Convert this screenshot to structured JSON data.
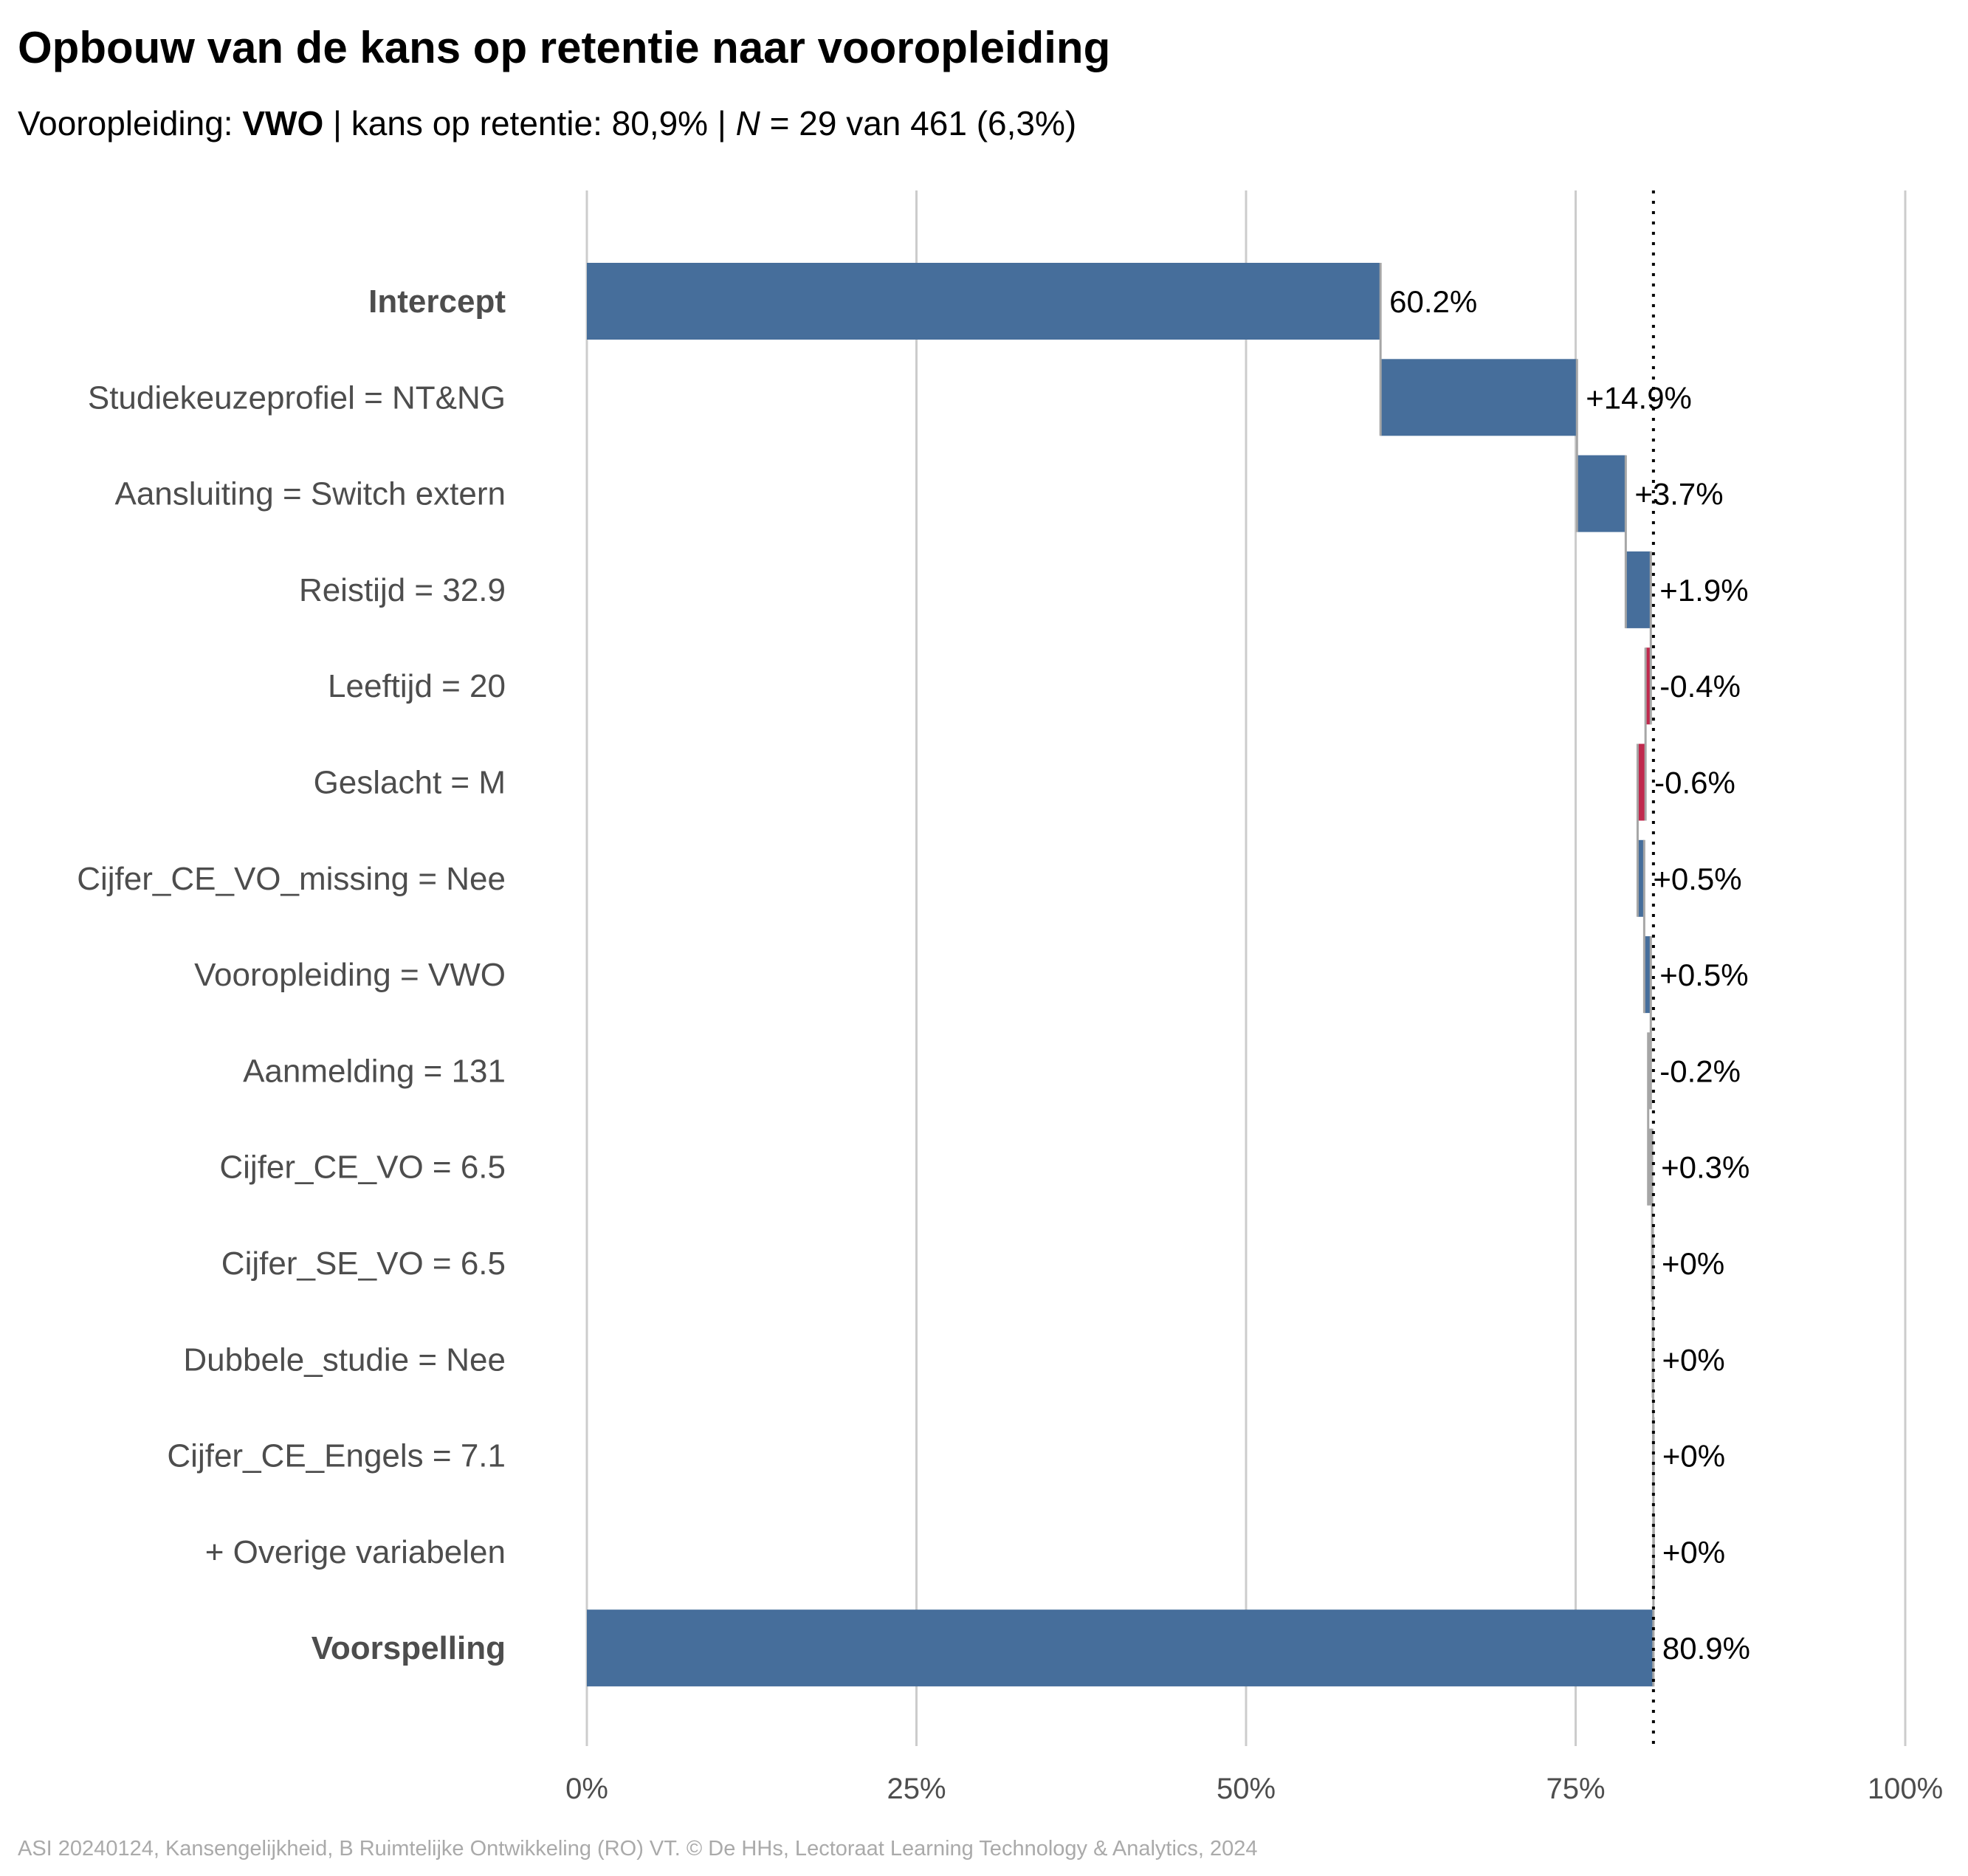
{
  "title": "Opbouw van de kans op retentie naar vooropleiding",
  "subtitle": {
    "prefix": "Vooropleiding: ",
    "group": "VWO",
    "sep1": " | kans op retentie: ",
    "probability": "80,9%",
    "sep2": " | ",
    "n_symbol": "N",
    "n_text": " = 29 van 461 (6,3%)"
  },
  "caption": "ASI 20240124, Kansengelijkheid, B Ruimtelijke Ontwikkeling (RO) VT. © De HHs, Lectoraat Learning Technology & Analytics, 2024",
  "colors": {
    "positive": "#466e9b",
    "negative": "#c0294d",
    "neutral": "#a6a6a6",
    "grid": "#cccccc",
    "connector": "#a6a6a6",
    "category_text": "#4d4d4d",
    "value_text": "#000000",
    "tick_text": "#4d4d4d",
    "caption_text": "#aaaaaa"
  },
  "chart_data": {
    "type": "bar",
    "subtype": "waterfall",
    "orientation": "horizontal",
    "xlim": [
      0,
      100
    ],
    "x_ticks": [
      0,
      25,
      50,
      75,
      100
    ],
    "x_tick_labels": [
      "0%",
      "25%",
      "50%",
      "75%",
      "100%"
    ],
    "reference_line": {
      "value": 80.9,
      "style": "dotted"
    },
    "grid": "vertical",
    "legend": "none",
    "items": [
      {
        "label": "Intercept",
        "kind": "total",
        "start": 0,
        "end": 60.2,
        "value_label": "60.2%",
        "color": "positive",
        "bold": true
      },
      {
        "label": "Studiekeuzeprofiel = NT&NG",
        "kind": "step",
        "start": 60.2,
        "end": 75.1,
        "value_label": "+14.9%",
        "color": "positive"
      },
      {
        "label": "Aansluiting = Switch extern",
        "kind": "step",
        "start": 75.1,
        "end": 78.8,
        "value_label": "+3.7%",
        "color": "positive"
      },
      {
        "label": "Reistijd = 32.9",
        "kind": "step",
        "start": 78.8,
        "end": 80.7,
        "value_label": "+1.9%",
        "color": "positive"
      },
      {
        "label": "Leeftijd = 20",
        "kind": "step",
        "start": 80.7,
        "end": 80.3,
        "value_label": "-0.4%",
        "color": "negative"
      },
      {
        "label": "Geslacht = M",
        "kind": "step",
        "start": 80.3,
        "end": 79.7,
        "value_label": "-0.6%",
        "color": "negative"
      },
      {
        "label": "Cijfer_CE_VO_missing = Nee",
        "kind": "step",
        "start": 79.7,
        "end": 80.2,
        "value_label": "+0.5%",
        "color": "positive"
      },
      {
        "label": "Vooropleiding = VWO",
        "kind": "step",
        "start": 80.2,
        "end": 80.7,
        "value_label": "+0.5%",
        "color": "positive"
      },
      {
        "label": "Aanmelding = 131",
        "kind": "step",
        "start": 80.7,
        "end": 80.5,
        "value_label": "-0.2%",
        "color": "neutral"
      },
      {
        "label": "Cijfer_CE_VO = 6.5",
        "kind": "step",
        "start": 80.5,
        "end": 80.8,
        "value_label": "+0.3%",
        "color": "neutral"
      },
      {
        "label": "Cijfer_SE_VO = 6.5",
        "kind": "step",
        "start": 80.8,
        "end": 80.85,
        "value_label": "+0%",
        "color": "neutral"
      },
      {
        "label": "Dubbele_studie = Nee",
        "kind": "step",
        "start": 80.85,
        "end": 80.88,
        "value_label": "+0%",
        "color": "neutral"
      },
      {
        "label": "Cijfer_CE_Engels = 7.1",
        "kind": "step",
        "start": 80.88,
        "end": 80.9,
        "value_label": "+0%",
        "color": "neutral"
      },
      {
        "label": "+ Overige variabelen",
        "kind": "step",
        "start": 80.9,
        "end": 80.9,
        "value_label": "+0%",
        "color": "neutral"
      },
      {
        "label": "Voorspelling",
        "kind": "total",
        "start": 0,
        "end": 80.9,
        "value_label": "80.9%",
        "color": "positive",
        "bold": true
      }
    ]
  }
}
